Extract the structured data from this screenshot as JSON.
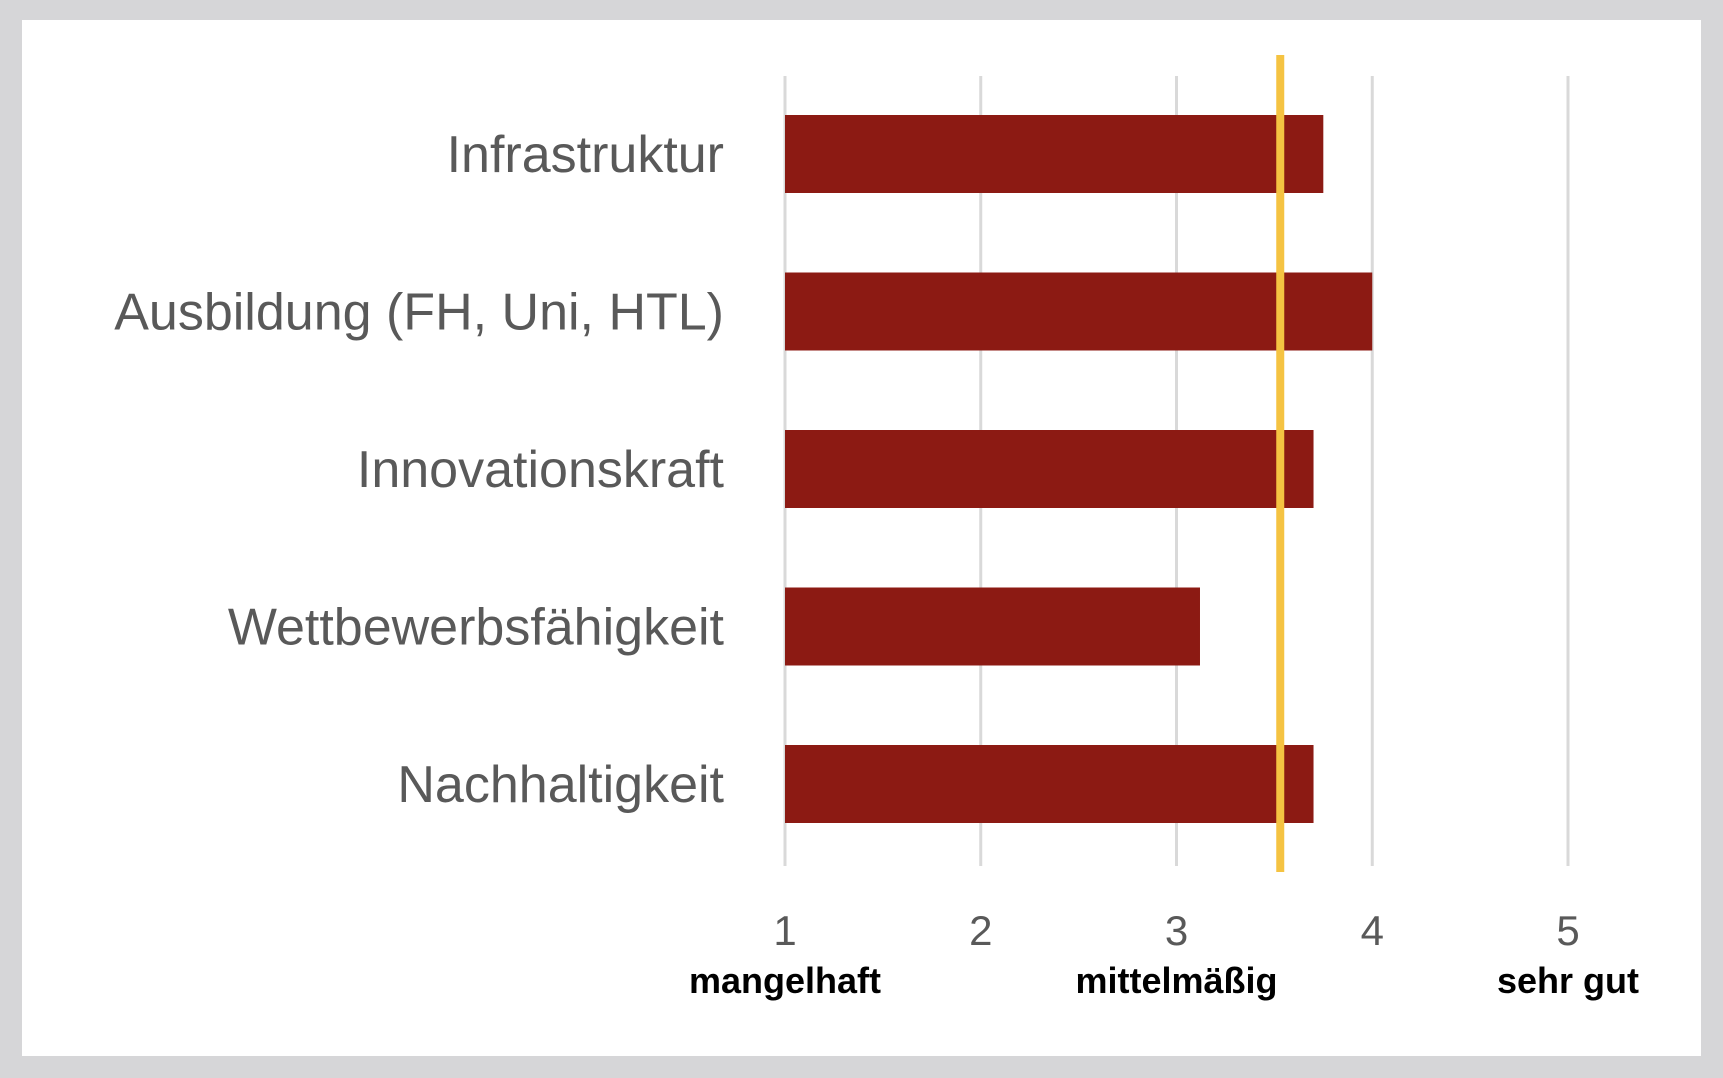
{
  "colors": {
    "bar": "#8c1a13",
    "reference_line": "#f5c342",
    "grid": "#d9d9d9"
  },
  "chart_data": {
    "type": "bar",
    "orientation": "horizontal",
    "categories": [
      "Infrastruktur",
      "Ausbildung (FH, Uni, HTL)",
      "Innovationskraft",
      "Wettbewerbsfähigkeit",
      "Nachhaltigkeit"
    ],
    "values": [
      3.75,
      4.0,
      3.7,
      3.12,
      3.7
    ],
    "xlim": [
      1,
      5
    ],
    "ticks": [
      1,
      2,
      3,
      4,
      5
    ],
    "tick_sublabels": [
      "mangelhaft",
      "",
      "mittelmäßig",
      "",
      "sehr gut"
    ],
    "reference_value": 3.53,
    "grid": true,
    "legend": "none"
  }
}
